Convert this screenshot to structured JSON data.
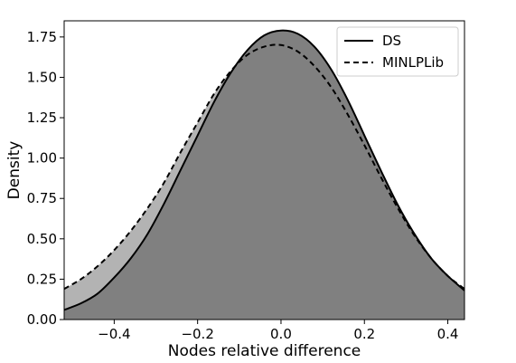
{
  "chart_data": {
    "type": "area",
    "xlabel": "Nodes relative difference",
    "ylabel": "Density",
    "xlim": [
      -0.52,
      0.44
    ],
    "ylim": [
      0.0,
      1.85
    ],
    "xticks": [
      -0.4,
      -0.2,
      0.0,
      0.2,
      0.4
    ],
    "xtick_labels": [
      "−0.4",
      "−0.2",
      "0.0",
      "0.2",
      "0.4"
    ],
    "yticks": [
      0.0,
      0.25,
      0.5,
      0.75,
      1.0,
      1.25,
      1.5,
      1.75
    ],
    "ytick_labels": [
      "0.00",
      "0.25",
      "0.50",
      "0.75",
      "1.00",
      "1.25",
      "1.50",
      "1.75"
    ],
    "grid": false,
    "legend_position": "top-right",
    "series": [
      {
        "name": "DS",
        "line_style": "solid",
        "fill": "#808080",
        "x": [
          -0.52,
          -0.48,
          -0.44,
          -0.4,
          -0.36,
          -0.32,
          -0.28,
          -0.24,
          -0.2,
          -0.16,
          -0.12,
          -0.08,
          -0.04,
          0.0,
          0.04,
          0.08,
          0.12,
          0.16,
          0.2,
          0.24,
          0.28,
          0.32,
          0.36,
          0.4,
          0.44
        ],
        "y": [
          0.06,
          0.1,
          0.16,
          0.26,
          0.38,
          0.53,
          0.72,
          0.93,
          1.14,
          1.35,
          1.53,
          1.67,
          1.76,
          1.79,
          1.77,
          1.69,
          1.55,
          1.36,
          1.14,
          0.92,
          0.71,
          0.53,
          0.38,
          0.27,
          0.18
        ]
      },
      {
        "name": "MINLPLib",
        "line_style": "dashed",
        "fill": "#b3b3b3",
        "x": [
          -0.52,
          -0.48,
          -0.44,
          -0.4,
          -0.36,
          -0.32,
          -0.28,
          -0.24,
          -0.2,
          -0.16,
          -0.12,
          -0.08,
          -0.04,
          0.0,
          0.04,
          0.08,
          0.12,
          0.16,
          0.2,
          0.24,
          0.28,
          0.32,
          0.36,
          0.4,
          0.44
        ],
        "y": [
          0.19,
          0.25,
          0.33,
          0.43,
          0.55,
          0.69,
          0.85,
          1.04,
          1.22,
          1.4,
          1.54,
          1.64,
          1.69,
          1.7,
          1.66,
          1.57,
          1.44,
          1.27,
          1.08,
          0.88,
          0.69,
          0.52,
          0.38,
          0.27,
          0.19
        ]
      }
    ]
  }
}
